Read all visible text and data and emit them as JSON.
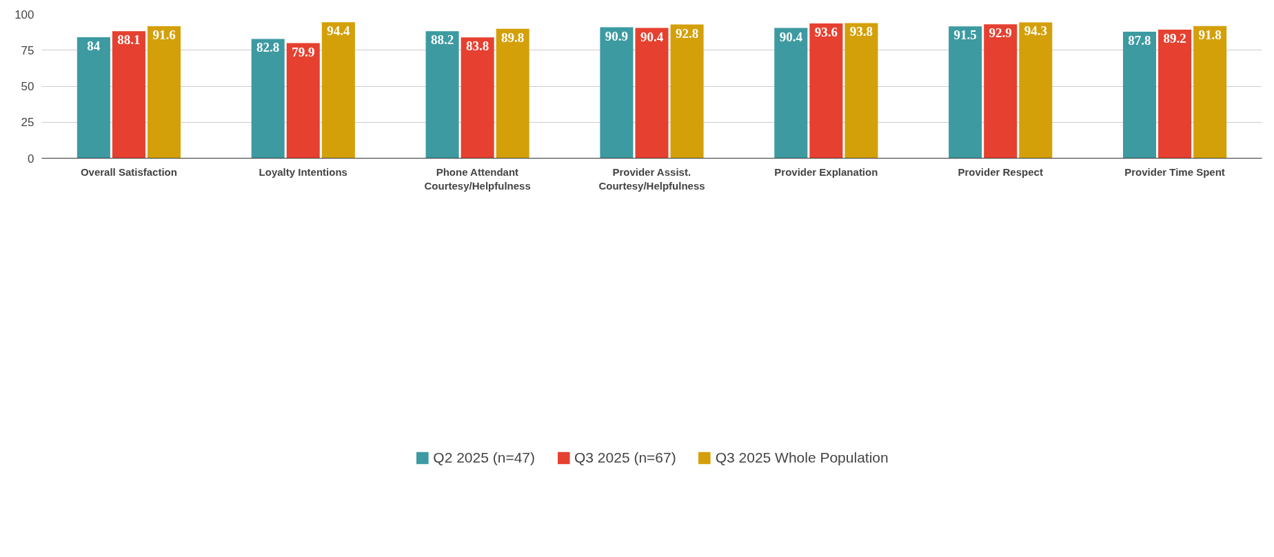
{
  "chart_data": {
    "type": "bar",
    "categories": [
      "Overall Satisfaction",
      "Loyalty Intentions",
      "Phone Attendant\nCourtesy/Helpfulness",
      "Provider Assist.\nCourtesy/Helpfulness",
      "Provider Explanation",
      "Provider Respect",
      "Provider Time Spent"
    ],
    "series": [
      {
        "name": "Q2 2025 (n=47)",
        "color": "#3d9aa1",
        "values": [
          84,
          82.8,
          88.2,
          90.9,
          90.4,
          91.5,
          87.8
        ]
      },
      {
        "name": "Q3 2025 (n=67)",
        "color": "#e64030",
        "values": [
          88.1,
          79.9,
          83.8,
          90.4,
          93.6,
          92.9,
          89.2
        ]
      },
      {
        "name": "Q3 2025 Whole Population",
        "color": "#d4a009",
        "values": [
          91.6,
          94.4,
          89.8,
          92.8,
          93.8,
          94.3,
          91.8
        ]
      }
    ],
    "ylim": [
      0,
      100
    ],
    "yticks": [
      0,
      25,
      50,
      75,
      100
    ],
    "grid": "y",
    "legend": "bottom",
    "data_labels": true
  }
}
